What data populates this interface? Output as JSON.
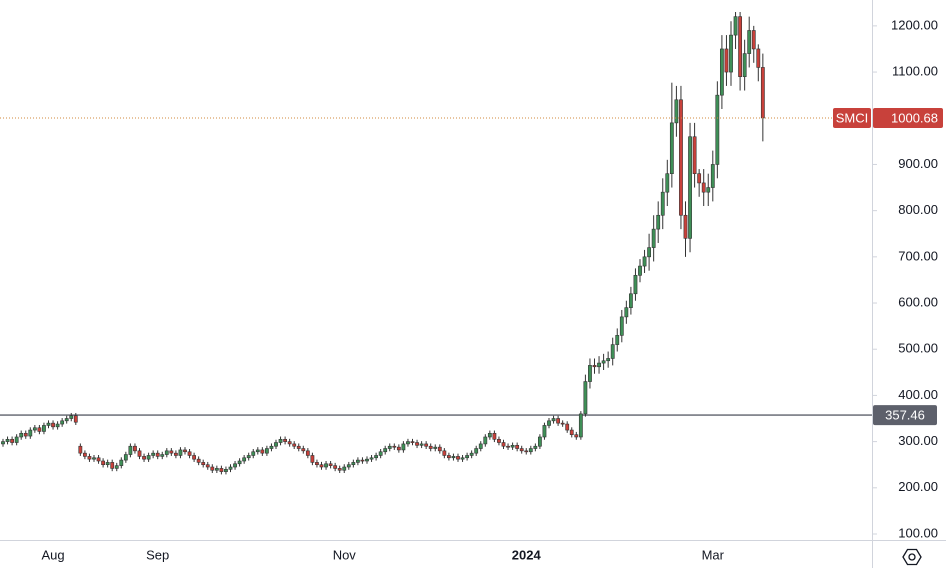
{
  "chart_data": {
    "type": "candlestick",
    "symbol": "SMCI",
    "up_color": "#3f8f57",
    "down_color": "#c8413b",
    "ylim": [
      87,
      1256
    ],
    "yticks": [
      {
        "value": 100,
        "label": "100.00"
      },
      {
        "value": 200,
        "label": "200.00"
      },
      {
        "value": 300,
        "label": "300.00"
      },
      {
        "value": 400,
        "label": "400.00"
      },
      {
        "value": 500,
        "label": "500.00"
      },
      {
        "value": 600,
        "label": "600.00"
      },
      {
        "value": 700,
        "label": "700.00"
      },
      {
        "value": 800,
        "label": "800.00"
      },
      {
        "value": 900,
        "label": "900.00"
      },
      {
        "value": 1000,
        "label": "1000.00"
      },
      {
        "value": 1100,
        "label": "1100.00"
      },
      {
        "value": 1200,
        "label": "1200.00"
      }
    ],
    "hline": {
      "value": 357.46,
      "color": "#5d606b"
    },
    "categories": [
      null,
      null,
      null,
      null,
      null,
      null,
      null,
      null,
      null,
      null,
      null,
      "Aug",
      null,
      null,
      null,
      null,
      null,
      null,
      null,
      null,
      null,
      null,
      null,
      null,
      null,
      null,
      null,
      null,
      null,
      null,
      null,
      null,
      null,
      null,
      "Sep",
      null,
      null,
      null,
      null,
      null,
      null,
      null,
      null,
      null,
      null,
      null,
      null,
      null,
      null,
      null,
      null,
      null,
      null,
      null,
      null,
      null,
      null,
      null,
      null,
      null,
      null,
      null,
      null,
      null,
      null,
      null,
      null,
      null,
      null,
      null,
      null,
      null,
      null,
      null,
      null,
      "Nov",
      null,
      null,
      null,
      null,
      null,
      null,
      null,
      null,
      null,
      null,
      null,
      null,
      null,
      null,
      null,
      null,
      null,
      null,
      null,
      null,
      null,
      null,
      null,
      null,
      null,
      null,
      null,
      null,
      null,
      null,
      null,
      null,
      null,
      null,
      null,
      null,
      null,
      null,
      null,
      "2024",
      null,
      null,
      null,
      null,
      null,
      null,
      null,
      null,
      null,
      null,
      null,
      null,
      null,
      null,
      null,
      null,
      null,
      null,
      null,
      null,
      null,
      null,
      null,
      null,
      null,
      null,
      null,
      null,
      null,
      null,
      null,
      null,
      null,
      null,
      null,
      null,
      null,
      null,
      null,
      null,
      "Mar",
      null,
      null,
      null,
      null,
      null,
      null,
      null,
      null,
      null,
      null,
      null
    ],
    "candles": [
      [
        295,
        306,
        289,
        300
      ],
      [
        300,
        311,
        294,
        305
      ],
      [
        305,
        311,
        292,
        298
      ],
      [
        298,
        316,
        292,
        310
      ],
      [
        310,
        324,
        304,
        318
      ],
      [
        318,
        324,
        306,
        312
      ],
      [
        312,
        331,
        306,
        325
      ],
      [
        325,
        336,
        319,
        330
      ],
      [
        330,
        336,
        316,
        322
      ],
      [
        322,
        341,
        316,
        335
      ],
      [
        335,
        346,
        329,
        340
      ],
      [
        340,
        346,
        326,
        332
      ],
      [
        332,
        344,
        326,
        338
      ],
      [
        338,
        351,
        332,
        345
      ],
      [
        345,
        356,
        339,
        350
      ],
      [
        350,
        362,
        344,
        356
      ],
      [
        356,
        362,
        336,
        342
      ],
      [
        290,
        296,
        269,
        275
      ],
      [
        275,
        281,
        262,
        268
      ],
      [
        268,
        274,
        256,
        262
      ],
      [
        262,
        271,
        256,
        265
      ],
      [
        265,
        271,
        252,
        258
      ],
      [
        258,
        264,
        244,
        250
      ],
      [
        250,
        261,
        244,
        255
      ],
      [
        255,
        261,
        236,
        242
      ],
      [
        242,
        254,
        236,
        248
      ],
      [
        248,
        266,
        242,
        260
      ],
      [
        260,
        278,
        254,
        272
      ],
      [
        272,
        296,
        266,
        290
      ],
      [
        290,
        296,
        274,
        280
      ],
      [
        280,
        286,
        262,
        268
      ],
      [
        268,
        274,
        256,
        262
      ],
      [
        262,
        276,
        256,
        270
      ],
      [
        270,
        281,
        264,
        275
      ],
      [
        275,
        281,
        262,
        268
      ],
      [
        268,
        278,
        262,
        272
      ],
      [
        272,
        286,
        266,
        280
      ],
      [
        280,
        286,
        269,
        275
      ],
      [
        275,
        281,
        264,
        270
      ],
      [
        270,
        288,
        264,
        282
      ],
      [
        282,
        288,
        272,
        278
      ],
      [
        278,
        284,
        264,
        270
      ],
      [
        270,
        276,
        256,
        262
      ],
      [
        262,
        268,
        249,
        255
      ],
      [
        255,
        261,
        244,
        250
      ],
      [
        250,
        256,
        239,
        245
      ],
      [
        245,
        251,
        232,
        238
      ],
      [
        238,
        248,
        232,
        242
      ],
      [
        242,
        248,
        229,
        235
      ],
      [
        235,
        246,
        229,
        240
      ],
      [
        240,
        251,
        234,
        245
      ],
      [
        245,
        258,
        239,
        252
      ],
      [
        252,
        264,
        246,
        258
      ],
      [
        258,
        271,
        252,
        265
      ],
      [
        265,
        276,
        259,
        270
      ],
      [
        270,
        284,
        264,
        278
      ],
      [
        278,
        288,
        272,
        282
      ],
      [
        282,
        288,
        269,
        275
      ],
      [
        275,
        291,
        269,
        285
      ],
      [
        285,
        296,
        279,
        290
      ],
      [
        290,
        304,
        284,
        298
      ],
      [
        298,
        311,
        292,
        305
      ],
      [
        305,
        311,
        294,
        300
      ],
      [
        300,
        306,
        289,
        295
      ],
      [
        295,
        301,
        284,
        290
      ],
      [
        290,
        296,
        279,
        285
      ],
      [
        285,
        291,
        274,
        280
      ],
      [
        280,
        286,
        264,
        270
      ],
      [
        270,
        276,
        249,
        255
      ],
      [
        255,
        261,
        244,
        250
      ],
      [
        250,
        256,
        239,
        245
      ],
      [
        245,
        258,
        239,
        252
      ],
      [
        252,
        258,
        242,
        248
      ],
      [
        248,
        254,
        236,
        242
      ],
      [
        242,
        248,
        232,
        238
      ],
      [
        238,
        251,
        232,
        245
      ],
      [
        245,
        256,
        239,
        250
      ],
      [
        250,
        261,
        244,
        255
      ],
      [
        255,
        266,
        249,
        260
      ],
      [
        260,
        266,
        252,
        258
      ],
      [
        258,
        268,
        252,
        262
      ],
      [
        262,
        271,
        256,
        265
      ],
      [
        265,
        276,
        259,
        270
      ],
      [
        270,
        284,
        264,
        278
      ],
      [
        278,
        291,
        272,
        285
      ],
      [
        285,
        296,
        279,
        290
      ],
      [
        290,
        296,
        282,
        288
      ],
      [
        288,
        294,
        276,
        282
      ],
      [
        282,
        301,
        276,
        295
      ],
      [
        295,
        306,
        289,
        300
      ],
      [
        300,
        306,
        292,
        298
      ],
      [
        298,
        304,
        286,
        292
      ],
      [
        292,
        301,
        286,
        295
      ],
      [
        295,
        301,
        284,
        290
      ],
      [
        290,
        296,
        279,
        285
      ],
      [
        285,
        294,
        279,
        288
      ],
      [
        288,
        294,
        274,
        280
      ],
      [
        280,
        286,
        264,
        270
      ],
      [
        270,
        276,
        259,
        265
      ],
      [
        265,
        274,
        259,
        268
      ],
      [
        268,
        274,
        256,
        262
      ],
      [
        262,
        271,
        256,
        265
      ],
      [
        265,
        276,
        259,
        270
      ],
      [
        270,
        281,
        264,
        275
      ],
      [
        275,
        291,
        269,
        285
      ],
      [
        285,
        301,
        279,
        295
      ],
      [
        295,
        316,
        289,
        310
      ],
      [
        310,
        324,
        304,
        318
      ],
      [
        318,
        324,
        299,
        305
      ],
      [
        305,
        311,
        292,
        298
      ],
      [
        298,
        304,
        284,
        290
      ],
      [
        290,
        296,
        282,
        288
      ],
      [
        288,
        298,
        282,
        292
      ],
      [
        292,
        298,
        279,
        285
      ],
      [
        285,
        291,
        274,
        280
      ],
      [
        280,
        286,
        272,
        278
      ],
      [
        278,
        291,
        272,
        285
      ],
      [
        285,
        296,
        279,
        290
      ],
      [
        290,
        316,
        284,
        310
      ],
      [
        310,
        341,
        304,
        335
      ],
      [
        335,
        351,
        329,
        345
      ],
      [
        345,
        356,
        339,
        350
      ],
      [
        350,
        356,
        334,
        340
      ],
      [
        340,
        346,
        332,
        338
      ],
      [
        338,
        344,
        319,
        325
      ],
      [
        325,
        331,
        309,
        315
      ],
      [
        315,
        321,
        304,
        310
      ],
      [
        310,
        366,
        304,
        360
      ],
      [
        360,
        445,
        354,
        430
      ],
      [
        430,
        480,
        415,
        465
      ],
      [
        465,
        480,
        447,
        462
      ],
      [
        462,
        485,
        447,
        470
      ],
      [
        470,
        490,
        455,
        475
      ],
      [
        475,
        495,
        460,
        480
      ],
      [
        480,
        525,
        465,
        510
      ],
      [
        510,
        545,
        495,
        530
      ],
      [
        530,
        585,
        515,
        570
      ],
      [
        570,
        605,
        555,
        590
      ],
      [
        590,
        635,
        575,
        620
      ],
      [
        620,
        675,
        605,
        660
      ],
      [
        660,
        695,
        645,
        680
      ],
      [
        680,
        715,
        665,
        700
      ],
      [
        700,
        750,
        670,
        720
      ],
      [
        720,
        790,
        690,
        760
      ],
      [
        760,
        820,
        730,
        790
      ],
      [
        790,
        870,
        760,
        840
      ],
      [
        840,
        910,
        810,
        880
      ],
      [
        880,
        1077,
        850,
        990
      ],
      [
        990,
        1070,
        960,
        1040
      ],
      [
        1040,
        1070,
        760,
        790
      ],
      [
        790,
        820,
        700,
        740
      ],
      [
        740,
        990,
        710,
        960
      ],
      [
        960,
        990,
        850,
        880
      ],
      [
        880,
        890,
        830,
        860
      ],
      [
        860,
        890,
        810,
        840
      ],
      [
        840,
        880,
        810,
        850
      ],
      [
        850,
        930,
        820,
        900
      ],
      [
        900,
        1080,
        870,
        1050
      ],
      [
        1050,
        1180,
        1020,
        1150
      ],
      [
        1150,
        1180,
        1070,
        1100
      ],
      [
        1100,
        1210,
        1070,
        1180
      ],
      [
        1180,
        1230,
        1150,
        1220
      ],
      [
        1220,
        1230,
        1060,
        1090
      ],
      [
        1090,
        1170,
        1060,
        1140
      ],
      [
        1140,
        1220,
        1110,
        1190
      ],
      [
        1190,
        1200,
        1120,
        1150
      ],
      [
        1150,
        1160,
        1080,
        1110
      ],
      [
        1110,
        1140,
        950,
        1000.68
      ]
    ]
  }
}
